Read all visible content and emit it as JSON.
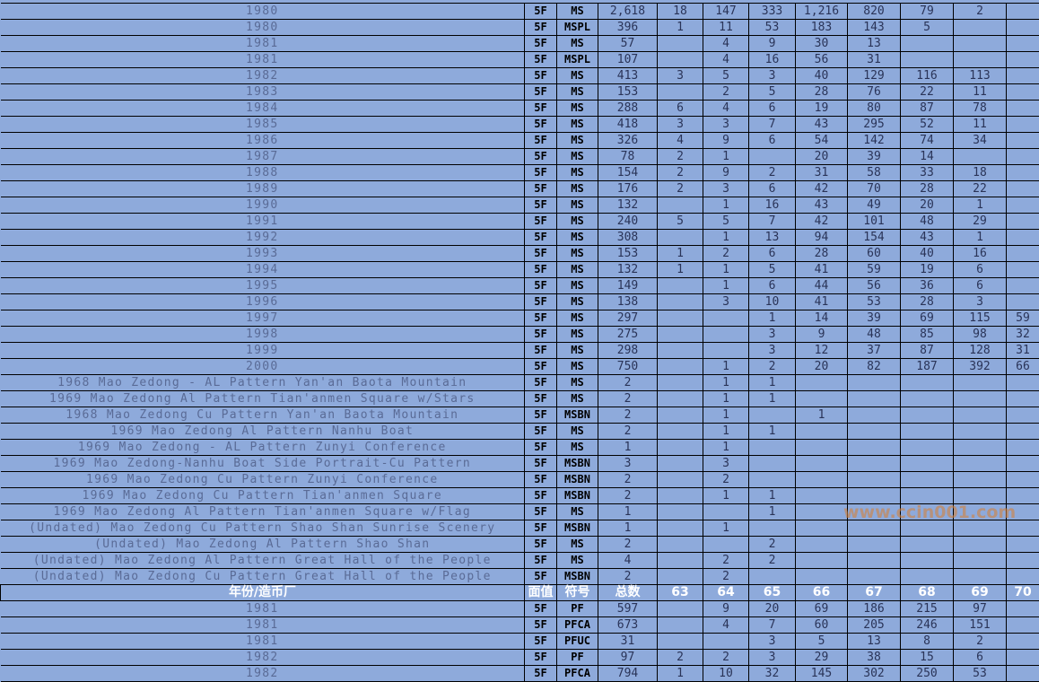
{
  "header": {
    "name": "年份/造币厂",
    "face": "面值",
    "symbol": "符号",
    "total": "总数",
    "years": [
      "63",
      "64",
      "65",
      "66",
      "67",
      "68",
      "69",
      "70"
    ]
  },
  "rows": [
    [
      "1980",
      "5F",
      "MS",
      "2,618",
      "18",
      "147",
      "333",
      "1,216",
      "820",
      "79",
      "2",
      ""
    ],
    [
      "1980",
      "5F",
      "MSPL",
      "396",
      "1",
      "11",
      "53",
      "183",
      "143",
      "5",
      "",
      ""
    ],
    [
      "1981",
      "5F",
      "MS",
      "57",
      "",
      "4",
      "9",
      "30",
      "13",
      "",
      "",
      ""
    ],
    [
      "1981",
      "5F",
      "MSPL",
      "107",
      "",
      "4",
      "16",
      "56",
      "31",
      "",
      "",
      ""
    ],
    [
      "1982",
      "5F",
      "MS",
      "413",
      "3",
      "5",
      "3",
      "40",
      "129",
      "116",
      "113",
      ""
    ],
    [
      "1983",
      "5F",
      "MS",
      "153",
      "",
      "2",
      "5",
      "28",
      "76",
      "22",
      "11",
      ""
    ],
    [
      "1984",
      "5F",
      "MS",
      "288",
      "6",
      "4",
      "6",
      "19",
      "80",
      "87",
      "78",
      ""
    ],
    [
      "1985",
      "5F",
      "MS",
      "418",
      "3",
      "3",
      "7",
      "43",
      "295",
      "52",
      "11",
      ""
    ],
    [
      "1986",
      "5F",
      "MS",
      "326",
      "4",
      "9",
      "6",
      "54",
      "142",
      "74",
      "34",
      ""
    ],
    [
      "1987",
      "5F",
      "MS",
      "78",
      "2",
      "1",
      "",
      "20",
      "39",
      "14",
      "",
      ""
    ],
    [
      "1988",
      "5F",
      "MS",
      "154",
      "2",
      "9",
      "2",
      "31",
      "58",
      "33",
      "18",
      ""
    ],
    [
      "1989",
      "5F",
      "MS",
      "176",
      "2",
      "3",
      "6",
      "42",
      "70",
      "28",
      "22",
      ""
    ],
    [
      "1990",
      "5F",
      "MS",
      "132",
      "",
      "1",
      "16",
      "43",
      "49",
      "20",
      "1",
      ""
    ],
    [
      "1991",
      "5F",
      "MS",
      "240",
      "5",
      "5",
      "7",
      "42",
      "101",
      "48",
      "29",
      ""
    ],
    [
      "1992",
      "5F",
      "MS",
      "308",
      "",
      "1",
      "13",
      "94",
      "154",
      "43",
      "1",
      ""
    ],
    [
      "1993",
      "5F",
      "MS",
      "153",
      "1",
      "2",
      "6",
      "28",
      "60",
      "40",
      "16",
      ""
    ],
    [
      "1994",
      "5F",
      "MS",
      "132",
      "1",
      "1",
      "5",
      "41",
      "59",
      "19",
      "6",
      ""
    ],
    [
      "1995",
      "5F",
      "MS",
      "149",
      "",
      "1",
      "6",
      "44",
      "56",
      "36",
      "6",
      ""
    ],
    [
      "1996",
      "5F",
      "MS",
      "138",
      "",
      "3",
      "10",
      "41",
      "53",
      "28",
      "3",
      ""
    ],
    [
      "1997",
      "5F",
      "MS",
      "297",
      "",
      "",
      "1",
      "14",
      "39",
      "69",
      "115",
      "59"
    ],
    [
      "1998",
      "5F",
      "MS",
      "275",
      "",
      "",
      "3",
      "9",
      "48",
      "85",
      "98",
      "32"
    ],
    [
      "1999",
      "5F",
      "MS",
      "298",
      "",
      "",
      "3",
      "12",
      "37",
      "87",
      "128",
      "31"
    ],
    [
      "2000",
      "5F",
      "MS",
      "750",
      "",
      "1",
      "2",
      "20",
      "82",
      "187",
      "392",
      "66"
    ],
    [
      "1968 Mao Zedong - AL Pattern Yan'an Baota Mountain",
      "5F",
      "MS",
      "2",
      "",
      "1",
      "1",
      "",
      "",
      "",
      "",
      ""
    ],
    [
      "1969 Mao Zedong Al Pattern Tian'anmen Square w/Stars",
      "5F",
      "MS",
      "2",
      "",
      "1",
      "1",
      "",
      "",
      "",
      "",
      ""
    ],
    [
      "1968 Mao Zedong Cu Pattern Yan'an Baota Mountain",
      "5F",
      "MSBN",
      "2",
      "",
      "1",
      "",
      "1",
      "",
      "",
      "",
      ""
    ],
    [
      "1969 Mao Zedong Al Pattern Nanhu Boat",
      "5F",
      "MS",
      "2",
      "",
      "1",
      "1",
      "",
      "",
      "",
      "",
      ""
    ],
    [
      "1969 Mao Zedong - AL Pattern Zunyi Conference",
      "5F",
      "MS",
      "1",
      "",
      "1",
      "",
      "",
      "",
      "",
      "",
      ""
    ],
    [
      "1969 Mao Zedong-Nanhu Boat Side Portrait-Cu Pattern",
      "5F",
      "MSBN",
      "3",
      "",
      "3",
      "",
      "",
      "",
      "",
      "",
      ""
    ],
    [
      "1969 Mao Zedong Cu Pattern Zunyi Conference",
      "5F",
      "MSBN",
      "2",
      "",
      "2",
      "",
      "",
      "",
      "",
      "",
      ""
    ],
    [
      "1969 Mao Zedong Cu Pattern Tian'anmen Square",
      "5F",
      "MSBN",
      "2",
      "",
      "1",
      "1",
      "",
      "",
      "",
      "",
      ""
    ],
    [
      "1969 Mao Zedong Al Pattern Tian'anmen Square w/Flag",
      "5F",
      "MS",
      "1",
      "",
      "",
      "1",
      "",
      "",
      "",
      "",
      ""
    ],
    [
      "(Undated) Mao Zedong Cu Pattern Shao Shan Sunrise Scenery",
      "5F",
      "MSBN",
      "1",
      "",
      "1",
      "",
      "",
      "",
      "",
      "",
      ""
    ],
    [
      "(Undated) Mao Zedong Al Pattern Shao Shan",
      "5F",
      "MS",
      "2",
      "",
      "",
      "2",
      "",
      "",
      "",
      "",
      ""
    ],
    [
      "(Undated) Mao Zedong Al Pattern Great Hall of the People",
      "5F",
      "MS",
      "4",
      "",
      "2",
      "2",
      "",
      "",
      "",
      "",
      ""
    ],
    [
      "(Undated) Mao Zedong Cu Pattern Great Hall of the People",
      "5F",
      "MSBN",
      "2",
      "",
      "2",
      "",
      "",
      "",
      "",
      "",
      ""
    ]
  ],
  "rows2": [
    [
      "1981",
      "5F",
      "PF",
      "597",
      "",
      "9",
      "20",
      "69",
      "186",
      "215",
      "97",
      ""
    ],
    [
      "1981",
      "5F",
      "PFCA",
      "673",
      "",
      "4",
      "7",
      "60",
      "205",
      "246",
      "151",
      ""
    ],
    [
      "1981",
      "5F",
      "PFUC",
      "31",
      "",
      "",
      "3",
      "5",
      "13",
      "8",
      "2",
      ""
    ],
    [
      "1982",
      "5F",
      "PF",
      "97",
      "2",
      "2",
      "3",
      "29",
      "38",
      "15",
      "6",
      ""
    ],
    [
      "1982",
      "5F",
      "PFCA",
      "794",
      "1",
      "10",
      "32",
      "145",
      "302",
      "250",
      "53",
      ""
    ]
  ],
  "watermark": "www.ccin001.com",
  "colors": {
    "cell_bg": "#8eaadb",
    "grid": "#000000",
    "header_text": "#ffffff"
  }
}
